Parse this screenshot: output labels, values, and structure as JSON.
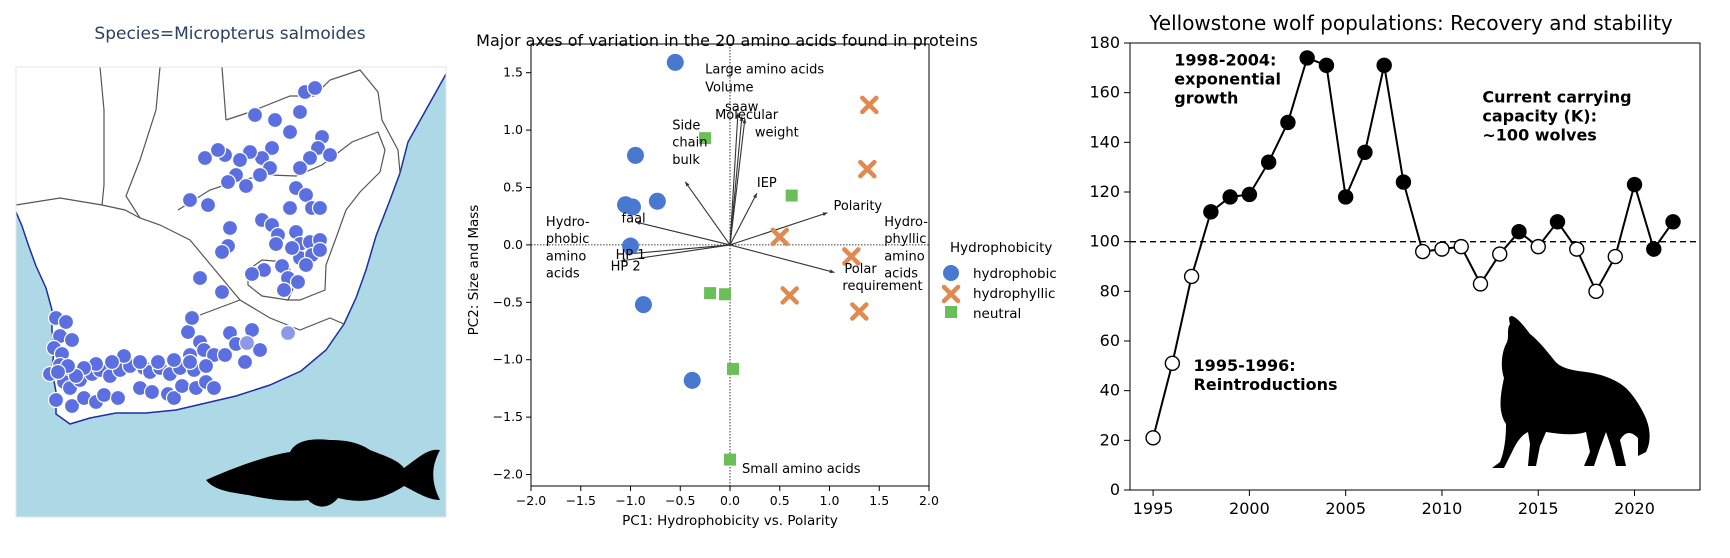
{
  "colors": {
    "sea": "#add8e6",
    "land": "#ffffff",
    "border": "#1f2f9f",
    "inner_border": "#555555",
    "marker": "#5b6fe0",
    "marker_light": "#8c99ea",
    "hydrophobic": "#4878cf",
    "hydrophyllic": "#e08a4f",
    "neutral": "#6abf59",
    "silhouette": "#000000"
  },
  "map_panel": {
    "title": "Species=Micropterus salmoides",
    "silhouette_icon": "fish-icon",
    "occurrence_count": 181
  },
  "chart_data": [
    {
      "type": "scatter",
      "title": "Major axes of variation in the 20 amino acids found in proteins",
      "xlabel": "PC1: Hydrophobicity vs. Polarity",
      "ylabel": "PC2: Size and Mass",
      "xlim": [
        -2.0,
        2.0
      ],
      "ylim": [
        -2.1,
        1.75
      ],
      "xticks": [
        "−2.0",
        "−1.5",
        "−1.0",
        "−0.5",
        "0.0",
        "0.5",
        "1.0",
        "1.5",
        "2.0"
      ],
      "xtick_values": [
        -2.0,
        -1.5,
        -1.0,
        -0.5,
        0.0,
        0.5,
        1.0,
        1.5,
        2.0
      ],
      "yticks": [
        "−2.0",
        "−1.5",
        "−1.0",
        "−0.5",
        "0.0",
        "0.5",
        "1.0",
        "1.5"
      ],
      "ytick_values": [
        -2.0,
        -1.5,
        -1.0,
        -0.5,
        0.0,
        0.5,
        1.0,
        1.5
      ],
      "legend": {
        "title": "Hydrophobicity",
        "placement": "right",
        "entries": [
          "hydrophobic",
          "hydrophyllic",
          "neutral"
        ]
      },
      "series": [
        {
          "name": "hydrophobic",
          "marker": "circle",
          "x": [
            -0.55,
            -0.95,
            -1.05,
            -0.98,
            -0.73,
            -1.0,
            -0.87,
            -0.38
          ],
          "y": [
            1.59,
            0.78,
            0.35,
            0.33,
            0.38,
            -0.01,
            -0.52,
            -1.18
          ]
        },
        {
          "name": "hydrophyllic",
          "marker": "x",
          "x": [
            1.4,
            1.38,
            0.5,
            1.22,
            0.6,
            1.3
          ],
          "y": [
            1.22,
            0.66,
            0.07,
            -0.1,
            -0.44,
            -0.58
          ]
        },
        {
          "name": "neutral",
          "marker": "square",
          "x": [
            -0.25,
            0.62,
            -0.2,
            -0.05,
            0.03,
            0.0
          ],
          "y": [
            0.93,
            0.43,
            -0.42,
            -0.43,
            -1.08,
            -1.87
          ]
        }
      ],
      "loading_arrows": [
        {
          "label": "Side chain bulk",
          "x": -0.45,
          "y": 0.55
        },
        {
          "label": "Volume",
          "x": 0.08,
          "y": 1.15
        },
        {
          "label": "saaw",
          "x": 0.12,
          "y": 1.12
        },
        {
          "label": "Molecular weight",
          "x": 0.15,
          "y": 1.1
        },
        {
          "label": "IEP",
          "x": 0.27,
          "y": 0.45
        },
        {
          "label": "Polarity",
          "x": 0.98,
          "y": 0.28
        },
        {
          "label": "faal",
          "x": -0.95,
          "y": 0.2
        },
        {
          "label": "HP 1",
          "x": -1.05,
          "y": -0.08
        },
        {
          "label": "HP 2",
          "x": -1.1,
          "y": -0.14
        },
        {
          "label": "Polar requirement",
          "x": 1.05,
          "y": -0.24
        }
      ],
      "text_annotations": [
        {
          "text": "Large amino acids",
          "x": -0.25,
          "y": 1.53
        },
        {
          "text": "Volume",
          "x": -0.25,
          "y": 1.37
        },
        {
          "text": "saaw",
          "x": -0.05,
          "y": 1.2
        },
        {
          "text": "Molecular",
          "x": -0.15,
          "y": 1.13
        },
        {
          "text": "weight",
          "x": 0.25,
          "y": 0.98
        },
        {
          "text": "Side",
          "x": -0.58,
          "y": 1.04
        },
        {
          "text": "chain",
          "x": -0.58,
          "y": 0.89
        },
        {
          "text": "bulk",
          "x": -0.58,
          "y": 0.74
        },
        {
          "text": "IEP",
          "x": 0.27,
          "y": 0.54
        },
        {
          "text": "Polarity",
          "x": 1.04,
          "y": 0.34
        },
        {
          "text": "faal",
          "x": -1.09,
          "y": 0.23
        },
        {
          "text": "HP 1",
          "x": -1.15,
          "y": -0.09
        },
        {
          "text": "HP 2",
          "x": -1.2,
          "y": -0.19
        },
        {
          "text": "Polar",
          "x": 1.15,
          "y": -0.21
        },
        {
          "text": "requirement",
          "x": 1.13,
          "y": -0.36
        },
        {
          "text": "Hydro-",
          "x": -1.85,
          "y": 0.2
        },
        {
          "text": "phobic",
          "x": -1.85,
          "y": 0.05
        },
        {
          "text": "amino",
          "x": -1.85,
          "y": -0.1
        },
        {
          "text": "acids",
          "x": -1.85,
          "y": -0.25
        },
        {
          "text": "Hydro-",
          "x": 1.55,
          "y": 0.2
        },
        {
          "text": "phyllic",
          "x": 1.55,
          "y": 0.05
        },
        {
          "text": "amino",
          "x": 1.55,
          "y": -0.1
        },
        {
          "text": "acids",
          "x": 1.55,
          "y": -0.25
        },
        {
          "text": "Small amino acids",
          "x": 0.12,
          "y": -1.95
        }
      ]
    },
    {
      "type": "line",
      "title": "Yellowstone wolf populations: Recovery and stability",
      "xlabel": "",
      "ylabel": "",
      "xlim": [
        1993.8,
        2023.4
      ],
      "ylim": [
        0,
        180
      ],
      "xticks": [
        1995,
        2000,
        2005,
        2010,
        2015,
        2020
      ],
      "yticks": [
        0,
        20,
        40,
        60,
        80,
        100,
        120,
        140,
        160,
        180
      ],
      "reference_line": {
        "y": 100,
        "style": "dashed"
      },
      "series": [
        {
          "name": "",
          "x": [
            1995,
            1996,
            1997,
            1998,
            1999,
            2000,
            2001,
            2002,
            2003,
            2004,
            2005,
            2006,
            2007,
            2008,
            2009,
            2010,
            2011,
            2012,
            2013,
            2014,
            2015,
            2016,
            2017,
            2018,
            2019,
            2020,
            2021,
            2022
          ],
          "y": [
            21,
            51,
            86,
            112,
            118,
            119,
            132,
            148,
            174,
            171,
            118,
            136,
            171,
            124,
            96,
            97,
            98,
            83,
            95,
            104,
            98,
            108,
            97,
            80,
            94,
            123,
            97,
            108
          ],
          "filled": [
            false,
            false,
            false,
            true,
            true,
            true,
            true,
            true,
            true,
            true,
            true,
            true,
            true,
            true,
            false,
            false,
            false,
            false,
            false,
            true,
            false,
            true,
            false,
            false,
            false,
            true,
            true,
            true
          ]
        }
      ],
      "annotations": [
        {
          "lines": [
            "1998-2004:",
            "exponential",
            "growth"
          ],
          "x": 1996.1,
          "y": 171
        },
        {
          "lines": [
            "Current carrying",
            "capacity (K):",
            " ~100 wolves"
          ],
          "x": 2012.1,
          "y": 156
        },
        {
          "lines": [
            "1995-1996:",
            "Reintroductions"
          ],
          "x": 1997.1,
          "y": 48
        }
      ],
      "silhouette_icon": "wolf-icon"
    }
  ]
}
